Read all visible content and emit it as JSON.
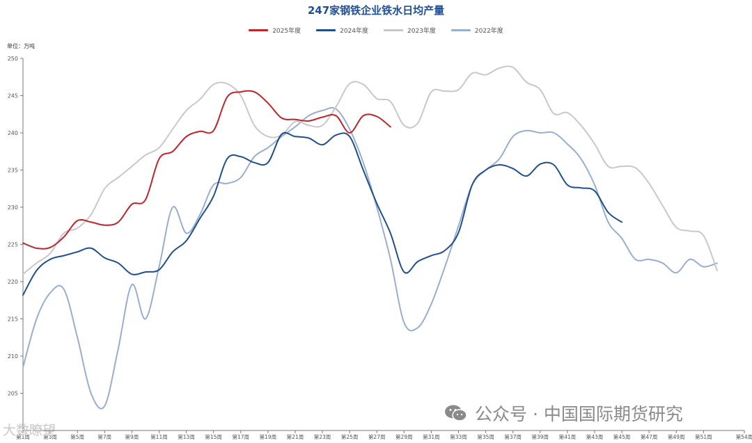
{
  "chart_data": {
    "type": "line",
    "title": "247家钢铁企业铁水日均产量",
    "unit": "单位：万吨",
    "ylim": [
      200,
      250
    ],
    "yticks": [
      205,
      210,
      215,
      220,
      225,
      230,
      235,
      240,
      245,
      250
    ],
    "x_tick_labels": [
      "第1周",
      "第3周",
      "第5周",
      "第7周",
      "第9周",
      "第11周",
      "第13周",
      "第15周",
      "第17周",
      "第19周",
      "第21周",
      "第23周",
      "第25周",
      "第27周",
      "第29周",
      "第31周",
      "第33周",
      "第35周",
      "第37周",
      "第39周",
      "第41周",
      "第43周",
      "第45周",
      "第47周",
      "第49周",
      "第51周",
      "第54周"
    ],
    "x_tick_weeks": [
      1,
      3,
      5,
      7,
      9,
      11,
      13,
      15,
      17,
      19,
      21,
      23,
      25,
      27,
      29,
      31,
      33,
      35,
      37,
      39,
      41,
      43,
      45,
      47,
      49,
      51,
      54
    ],
    "x_range": [
      1,
      54
    ],
    "grid": false,
    "legend_position": "top-center",
    "series": [
      {
        "name": "2025年度",
        "color": "#c0232a",
        "values": [
          225.2,
          224.5,
          224.6,
          226.0,
          228.2,
          228.0,
          227.6,
          228.0,
          230.4,
          231.0,
          236.5,
          237.5,
          239.5,
          240.2,
          240.3,
          244.8,
          245.5,
          245.5,
          244.0,
          242.0,
          241.8,
          241.6,
          242.1,
          242.3,
          240.0,
          242.3,
          242.2,
          240.8
        ]
      },
      {
        "name": "2024年度",
        "color": "#1f4e8f",
        "values": [
          218.2,
          221.5,
          223.0,
          223.5,
          224.0,
          224.5,
          223.2,
          222.5,
          221.0,
          221.3,
          221.6,
          224.0,
          225.5,
          228.5,
          231.5,
          236.5,
          236.8,
          236.0,
          236.0,
          239.8,
          239.5,
          239.3,
          238.4,
          239.7,
          239.5,
          235.0,
          230.5,
          226.5,
          221.3,
          222.7,
          223.5,
          224.2,
          226.6,
          233.0,
          235.0,
          235.7,
          235.2,
          234.2,
          235.8,
          235.7,
          233.0,
          232.6,
          232.2,
          229.3,
          228.0
        ]
      },
      {
        "name": "2023年度",
        "color": "#c8c8c8",
        "values": [
          221.0,
          222.5,
          223.8,
          226.5,
          227.2,
          229.0,
          232.5,
          234.0,
          235.5,
          237.0,
          238.0,
          240.5,
          243.0,
          244.5,
          246.5,
          246.6,
          245.0,
          241.0,
          239.5,
          239.7,
          241.5,
          241.0,
          241.0,
          243.5,
          246.6,
          246.5,
          244.6,
          244.2,
          241.0,
          241.3,
          245.5,
          245.6,
          245.8,
          248.0,
          247.8,
          248.7,
          248.8,
          246.8,
          245.8,
          242.6,
          242.7,
          241.0,
          238.5,
          235.5,
          235.5,
          235.3,
          233.2,
          230.2,
          227.3,
          226.8,
          226.2,
          221.5
        ]
      },
      {
        "name": "2022年度",
        "color": "#98aed0",
        "values": [
          208.5,
          215.0,
          218.5,
          219.0,
          212.5,
          205.0,
          203.3,
          211.0,
          219.6,
          215.0,
          222.0,
          230.0,
          226.5,
          229.0,
          233.0,
          233.2,
          234.0,
          236.8,
          238.0,
          239.5,
          240.8,
          242.3,
          243.0,
          243.2,
          240.5,
          236.0,
          230.0,
          223.0,
          214.5,
          213.8,
          217.0,
          222.0,
          227.5,
          233.0,
          235.0,
          236.5,
          239.5,
          240.3,
          240.0,
          240.0,
          238.5,
          236.5,
          233.0,
          228.0,
          225.8,
          223.0,
          223.0,
          222.5,
          221.2,
          223.0,
          222.0,
          222.5
        ]
      }
    ]
  },
  "watermark": {
    "text": "公众号 · 中国国际期货研究",
    "icon": "wechat-icon"
  },
  "brand": {
    "text": "大数瞭望"
  }
}
